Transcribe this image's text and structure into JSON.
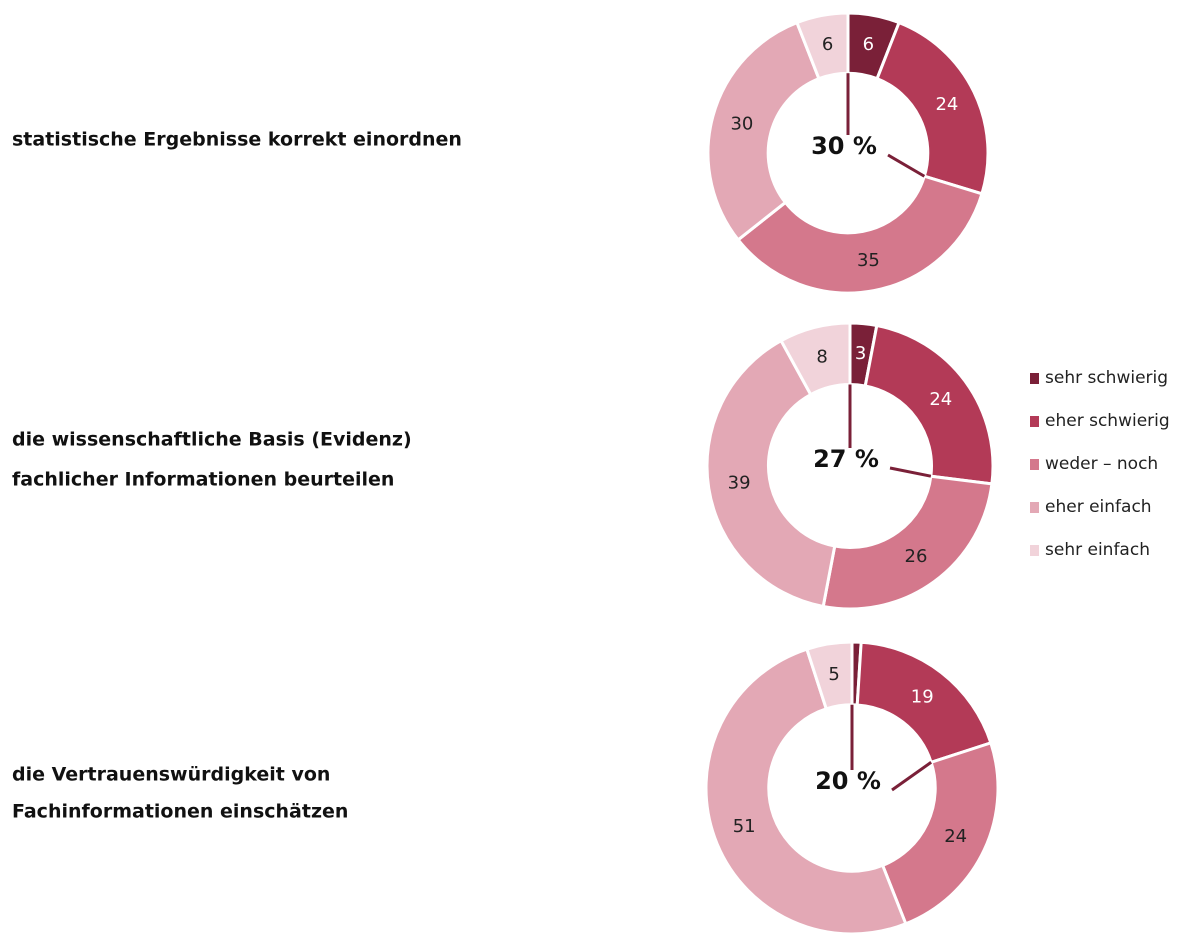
{
  "legend": {
    "categories": [
      "sehr schwierig",
      "eher schwierig",
      "weder – noch",
      "eher einfach",
      "sehr einfach"
    ],
    "colors": [
      "#7a2038",
      "#b33a57",
      "#d4788c",
      "#e3a8b5",
      "#f1d3da"
    ]
  },
  "chart_data": [
    {
      "type": "pie",
      "title": [
        "statistische Ergebnisse korrekt einordnen"
      ],
      "center_label": "30 %",
      "values": [
        6,
        24,
        35,
        30,
        6
      ]
    },
    {
      "type": "pie",
      "title": [
        "die wissenschaftliche Basis (Evidenz)",
        "fachlicher Informationen beurteilen"
      ],
      "center_label": "27 %",
      "values": [
        3,
        24,
        26,
        39,
        8
      ]
    },
    {
      "type": "pie",
      "title": [
        "die Vertrauenswürdigkeit von",
        "Fachinformationen einschätzen"
      ],
      "center_label": "20 %",
      "values": [
        1,
        19,
        24,
        51,
        5
      ]
    }
  ]
}
